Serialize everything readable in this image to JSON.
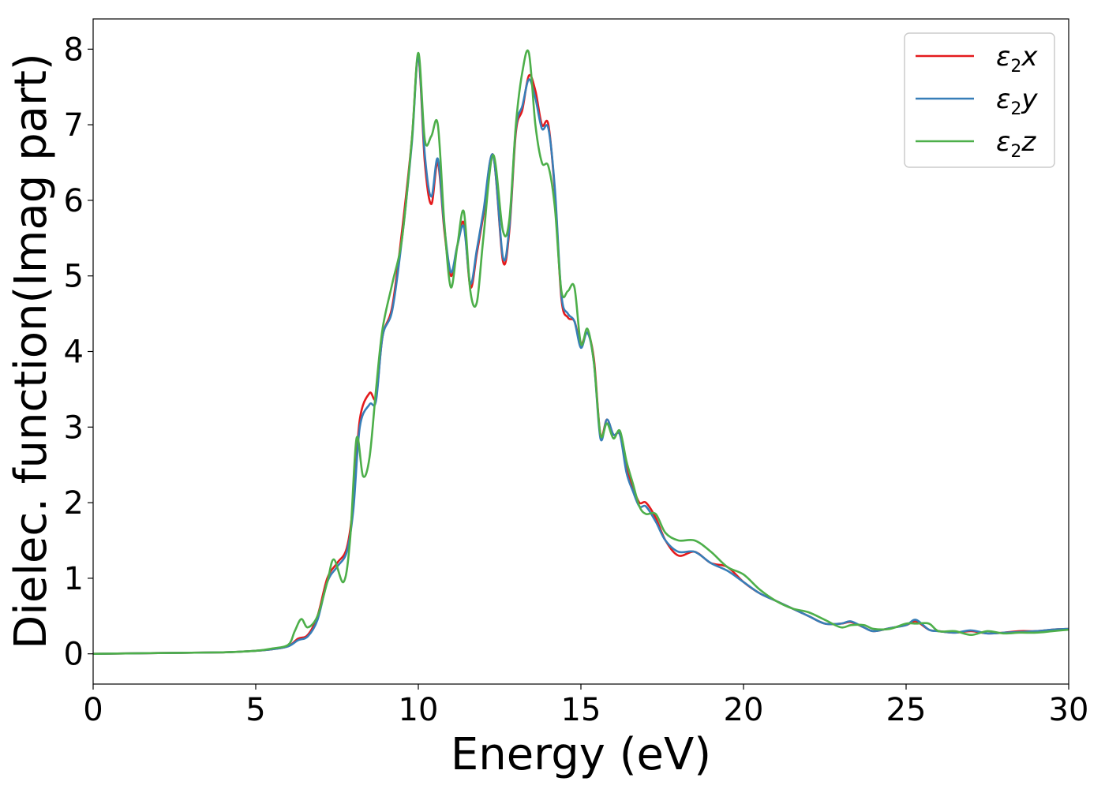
{
  "chart_data": {
    "type": "line",
    "title": "",
    "xlabel": "Energy (eV)",
    "ylabel": "Dielec. function(Imag part)",
    "xlim": [
      0,
      30
    ],
    "ylim": [
      -0.4,
      8.4
    ],
    "xticks": [
      0,
      5,
      10,
      15,
      20,
      25,
      30
    ],
    "yticks": [
      0,
      1,
      2,
      3,
      4,
      5,
      6,
      7,
      8
    ],
    "grid": false,
    "legend_position": "top-right",
    "series": [
      {
        "name": "ε2x",
        "symbol": "ε",
        "subscript": "2",
        "axis": "x",
        "color": "#e41a1c",
        "x": [
          0,
          2,
          4,
          5,
          5.5,
          6,
          6.3,
          6.6,
          6.9,
          7.2,
          7.5,
          7.8,
          8,
          8.2,
          8.5,
          8.7,
          8.9,
          9.2,
          9.5,
          9.8,
          10,
          10.2,
          10.4,
          10.6,
          10.8,
          11,
          11.2,
          11.4,
          11.6,
          11.8,
          12,
          12.3,
          12.6,
          12.8,
          13,
          13.2,
          13.4,
          13.6,
          13.8,
          14,
          14.2,
          14.4,
          14.6,
          14.8,
          15,
          15.2,
          15.4,
          15.6,
          15.8,
          16,
          16.2,
          16.4,
          16.6,
          16.8,
          17,
          17.3,
          17.6,
          18,
          18.5,
          19,
          19.5,
          20,
          20.5,
          21,
          21.5,
          22,
          22.5,
          23,
          23.3,
          23.7,
          24,
          24.5,
          25,
          25.3,
          25.7,
          26,
          26.5,
          27,
          27.5,
          28,
          28.5,
          29,
          29.5,
          30
        ],
        "y": [
          0,
          0.01,
          0.02,
          0.04,
          0.06,
          0.1,
          0.2,
          0.25,
          0.5,
          1.0,
          1.2,
          1.4,
          2.0,
          3.1,
          3.45,
          3.4,
          4.2,
          4.6,
          5.6,
          6.8,
          7.9,
          6.5,
          5.95,
          6.5,
          5.6,
          5.0,
          5.4,
          5.7,
          4.85,
          5.3,
          5.8,
          6.6,
          5.2,
          5.6,
          6.9,
          7.2,
          7.65,
          7.45,
          7.0,
          7.0,
          6.1,
          4.7,
          4.45,
          4.4,
          4.1,
          4.25,
          3.9,
          2.9,
          3.1,
          2.9,
          2.9,
          2.45,
          2.2,
          2.0,
          2.0,
          1.8,
          1.5,
          1.3,
          1.35,
          1.2,
          1.15,
          0.95,
          0.8,
          0.7,
          0.6,
          0.5,
          0.4,
          0.4,
          0.42,
          0.35,
          0.3,
          0.34,
          0.38,
          0.43,
          0.32,
          0.3,
          0.28,
          0.3,
          0.27,
          0.28,
          0.3,
          0.3,
          0.32,
          0.33
        ]
      },
      {
        "name": "ε2y",
        "symbol": "ε",
        "subscript": "2",
        "axis": "y",
        "color": "#377eb8",
        "x": [
          0,
          2,
          4,
          5,
          5.5,
          6,
          6.3,
          6.6,
          6.9,
          7.2,
          7.5,
          7.8,
          8,
          8.2,
          8.5,
          8.7,
          8.9,
          9.2,
          9.5,
          9.8,
          10,
          10.2,
          10.4,
          10.6,
          10.8,
          11,
          11.2,
          11.4,
          11.6,
          11.8,
          12,
          12.3,
          12.6,
          12.8,
          13,
          13.2,
          13.4,
          13.6,
          13.8,
          14,
          14.2,
          14.4,
          14.6,
          14.8,
          15,
          15.2,
          15.4,
          15.6,
          15.8,
          16,
          16.2,
          16.4,
          16.6,
          16.8,
          17,
          17.3,
          17.6,
          18,
          18.5,
          19,
          19.5,
          20,
          20.5,
          21,
          21.5,
          22,
          22.5,
          23,
          23.3,
          23.7,
          24,
          24.5,
          25,
          25.3,
          25.7,
          26,
          26.5,
          27,
          27.5,
          28,
          28.5,
          29,
          29.5,
          30
        ],
        "y": [
          0,
          0.01,
          0.02,
          0.04,
          0.06,
          0.1,
          0.18,
          0.23,
          0.45,
          0.95,
          1.15,
          1.35,
          1.9,
          3.0,
          3.3,
          3.35,
          4.2,
          4.55,
          5.5,
          6.75,
          7.9,
          6.6,
          6.05,
          6.55,
          5.65,
          5.05,
          5.4,
          5.65,
          4.9,
          5.35,
          5.85,
          6.6,
          5.25,
          5.65,
          6.95,
          7.25,
          7.6,
          7.35,
          6.95,
          6.95,
          6.15,
          4.75,
          4.5,
          4.4,
          4.05,
          4.25,
          3.85,
          2.85,
          3.1,
          2.9,
          2.9,
          2.4,
          2.15,
          1.95,
          1.95,
          1.75,
          1.5,
          1.35,
          1.35,
          1.2,
          1.1,
          0.95,
          0.8,
          0.7,
          0.6,
          0.5,
          0.4,
          0.4,
          0.43,
          0.35,
          0.3,
          0.34,
          0.38,
          0.45,
          0.32,
          0.3,
          0.28,
          0.31,
          0.27,
          0.28,
          0.29,
          0.3,
          0.32,
          0.33
        ]
      },
      {
        "name": "ε2z",
        "symbol": "ε",
        "subscript": "2",
        "axis": "z",
        "color": "#4daf4a",
        "x": [
          0,
          2,
          4,
          5,
          5.5,
          6,
          6.2,
          6.4,
          6.6,
          6.9,
          7.2,
          7.4,
          7.7,
          7.9,
          8.1,
          8.3,
          8.5,
          8.7,
          8.9,
          9.2,
          9.5,
          9.8,
          10,
          10.2,
          10.4,
          10.6,
          10.8,
          11,
          11.2,
          11.4,
          11.6,
          11.8,
          12,
          12.3,
          12.6,
          12.8,
          13,
          13.2,
          13.4,
          13.6,
          13.8,
          14,
          14.2,
          14.4,
          14.6,
          14.8,
          15,
          15.2,
          15.4,
          15.6,
          15.8,
          16,
          16.2,
          16.4,
          16.6,
          16.8,
          17,
          17.3,
          17.6,
          18,
          18.5,
          19,
          19.5,
          20,
          20.5,
          21,
          21.5,
          22,
          22.5,
          23,
          23.3,
          23.7,
          24,
          24.5,
          25,
          25.3,
          25.7,
          26,
          26.5,
          27,
          27.5,
          28,
          28.5,
          29,
          29.5,
          30
        ],
        "y": [
          0,
          0.01,
          0.02,
          0.04,
          0.07,
          0.12,
          0.3,
          0.46,
          0.35,
          0.5,
          0.95,
          1.25,
          0.95,
          1.5,
          2.85,
          2.35,
          2.6,
          3.5,
          4.3,
          4.9,
          5.5,
          6.8,
          7.95,
          6.8,
          6.85,
          7.0,
          5.7,
          4.85,
          5.4,
          5.85,
          4.8,
          4.65,
          5.5,
          6.6,
          5.6,
          5.75,
          7.0,
          7.7,
          7.95,
          7.0,
          6.5,
          6.45,
          5.9,
          4.8,
          4.8,
          4.85,
          4.1,
          4.3,
          3.85,
          2.9,
          3.05,
          2.85,
          2.95,
          2.55,
          2.25,
          1.95,
          1.85,
          1.85,
          1.6,
          1.5,
          1.5,
          1.35,
          1.15,
          1.05,
          0.85,
          0.7,
          0.6,
          0.55,
          0.45,
          0.35,
          0.38,
          0.38,
          0.33,
          0.33,
          0.4,
          0.4,
          0.4,
          0.3,
          0.3,
          0.25,
          0.3,
          0.27,
          0.28,
          0.28,
          0.3,
          0.32
        ]
      }
    ]
  }
}
